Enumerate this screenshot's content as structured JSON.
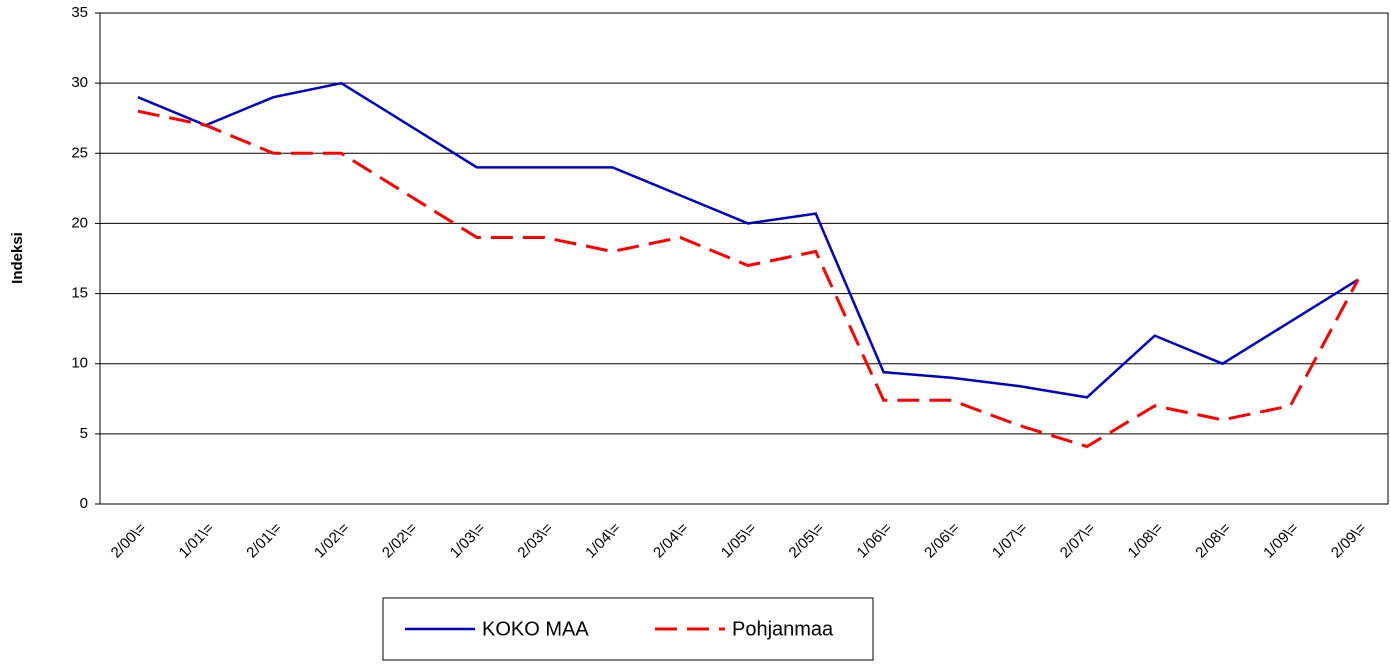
{
  "chart_data": {
    "type": "line",
    "y_label": "Indeksi",
    "categories": [
      "2/00\\=",
      "1/01\\=",
      "2/01\\=",
      "1/02\\=",
      "2/02\\=",
      "1/03\\=",
      "2/03\\=",
      "1/04\\=",
      "2/04\\=",
      "1/05\\=",
      "2/05\\=",
      "1/06\\=",
      "2/06\\=",
      "1/07\\=",
      "2/07\\=",
      "1/08\\=",
      "2/08\\=",
      "1/09\\=",
      "2/09\\="
    ],
    "series": [
      {
        "name": "KOKO MAA",
        "color": "#0000cc",
        "dashed": false,
        "values": [
          29,
          27,
          29,
          30,
          27,
          24,
          24,
          24,
          22,
          20,
          20.7,
          9.4,
          9,
          8.4,
          7.6,
          12,
          10,
          13,
          16
        ]
      },
      {
        "name": "Pohjanmaa",
        "color": "#ff0000",
        "dashed": true,
        "values": [
          28,
          27,
          25,
          25,
          22,
          19,
          19,
          18,
          19,
          17,
          18,
          7.4,
          7.4,
          5.6,
          4.1,
          7,
          6,
          7,
          16
        ]
      }
    ],
    "ylim": [
      0,
      35
    ],
    "yticks": [
      0,
      5,
      10,
      15,
      20,
      25,
      30,
      35
    ],
    "grid": true,
    "legend": "bottom"
  }
}
